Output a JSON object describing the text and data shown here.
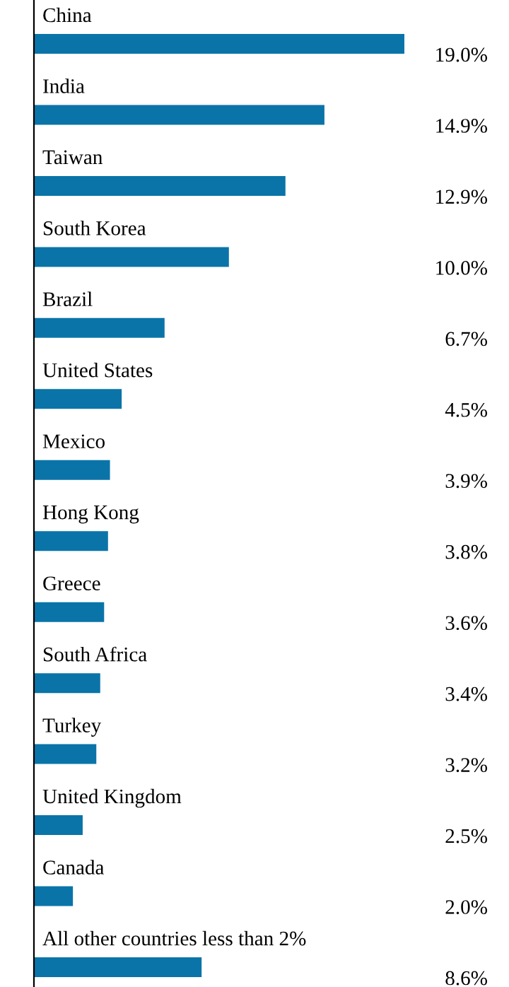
{
  "chart_data": {
    "type": "bar",
    "orientation": "horizontal",
    "categories": [
      "China",
      "India",
      "Taiwan",
      "South Korea",
      "Brazil",
      "United States",
      "Mexico",
      "Hong Kong",
      "Greece",
      "South Africa",
      "Turkey",
      "United Kingdom",
      "Canada",
      "All other countries less than 2%"
    ],
    "values": [
      19.0,
      14.9,
      12.9,
      10.0,
      6.7,
      4.5,
      3.9,
      3.8,
      3.6,
      3.4,
      3.2,
      2.5,
      2.0,
      8.6
    ],
    "value_labels": [
      "19.0%",
      "14.9%",
      "12.9%",
      "10.0%",
      "6.7%",
      "4.5%",
      "3.9%",
      "3.8%",
      "3.6%",
      "3.4%",
      "3.2%",
      "2.5%",
      "2.0%",
      "8.6%"
    ],
    "color": "#0a74a8"
  }
}
